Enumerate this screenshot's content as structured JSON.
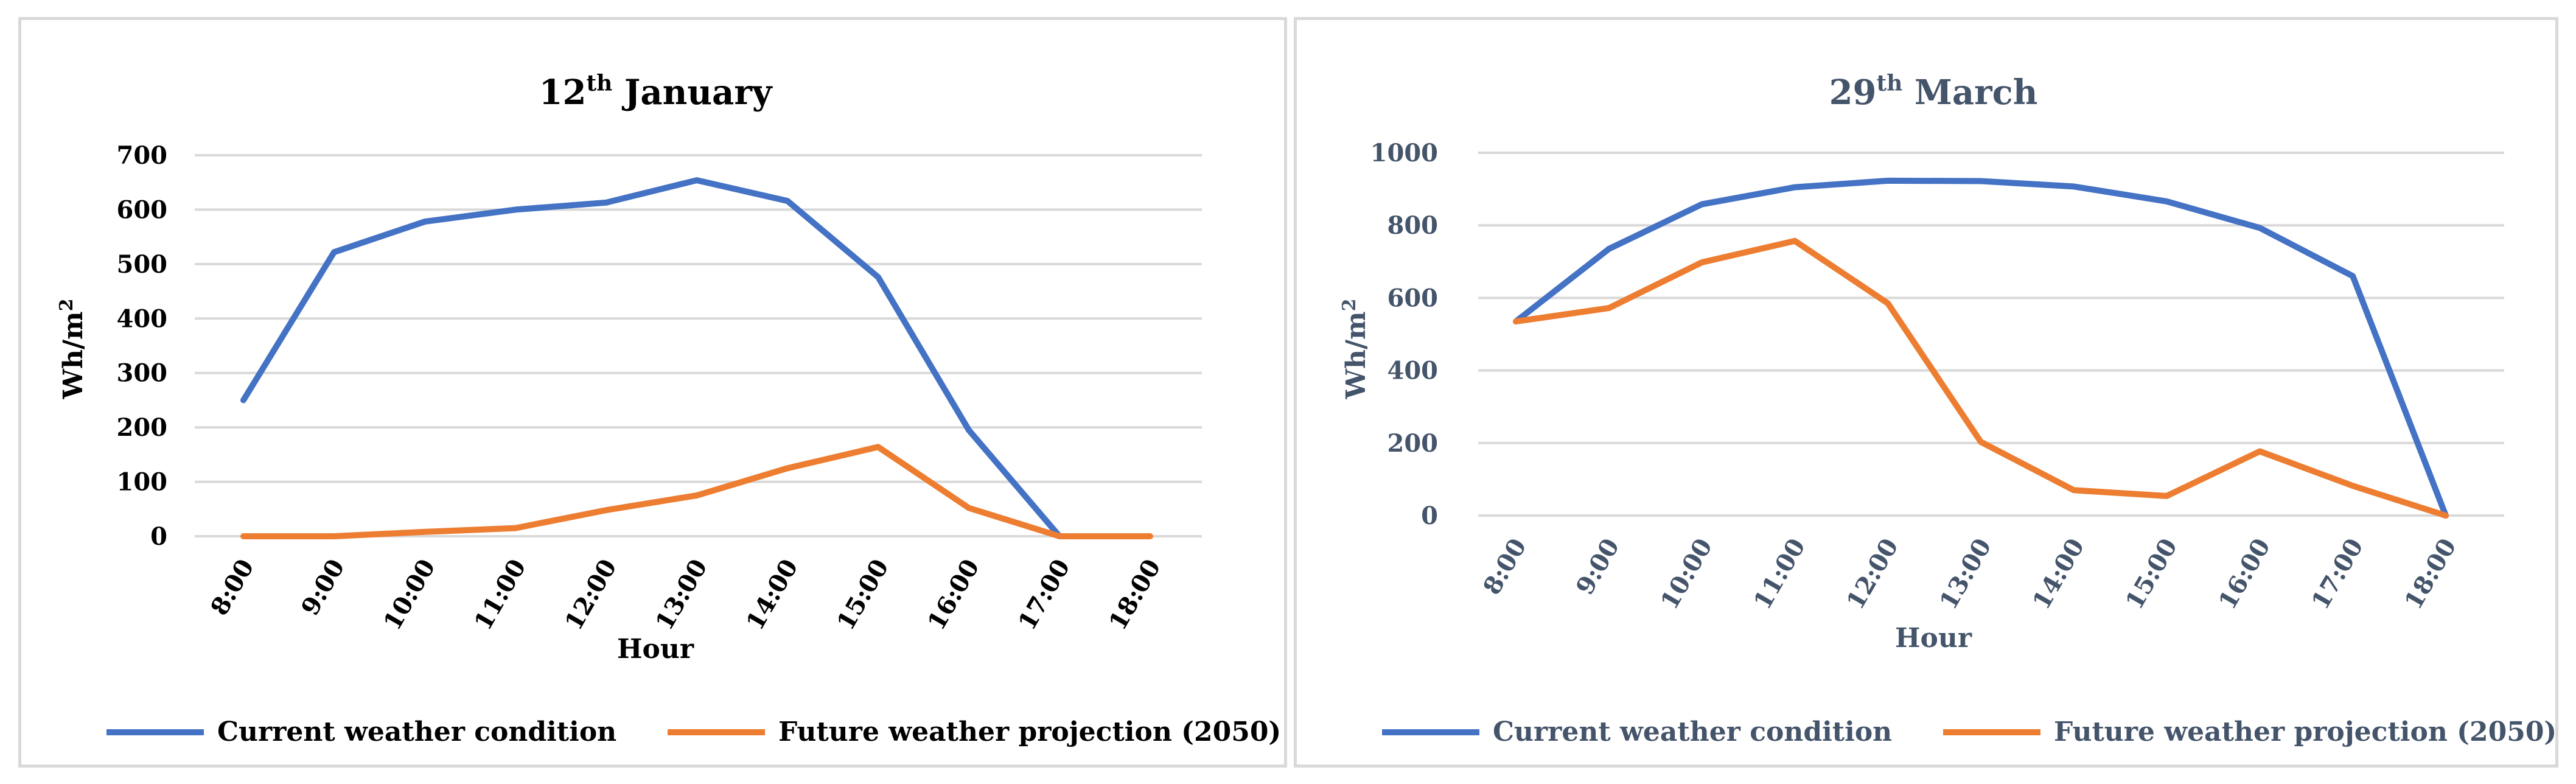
{
  "chart_data": [
    {
      "type": "line",
      "title": "12",
      "title_sup": "th",
      "title_rest": " January",
      "xlabel": "Hour",
      "ylabel": "Wh/m",
      "ylabel_sup": "2",
      "categories": [
        "8:00",
        "9:00",
        "10:00",
        "11:00",
        "12:00",
        "13:00",
        "14:00",
        "15:00",
        "16:00",
        "17:00",
        "18:00"
      ],
      "ylim": [
        0,
        700
      ],
      "yticks": [
        0,
        100,
        200,
        300,
        400,
        500,
        600,
        700
      ],
      "text_color": "#000000",
      "series": [
        {
          "name": "Current weather condition",
          "color": "#4472c4",
          "values": [
            250,
            522,
            578,
            600,
            613,
            654,
            616,
            476,
            195,
            0,
            null
          ]
        },
        {
          "name": "Future weather projection (2050)",
          "color": "#ed7d31",
          "values": [
            0,
            0,
            8,
            15,
            48,
            75,
            125,
            164,
            52,
            0,
            0
          ]
        }
      ],
      "legend": "bottom"
    },
    {
      "type": "line",
      "title": "29",
      "title_sup": "th",
      "title_rest": " March",
      "xlabel": "Hour",
      "ylabel": "Wh/m",
      "ylabel_sup": "2",
      "categories": [
        "8:00",
        "9:00",
        "10:00",
        "11:00",
        "12:00",
        "13:00",
        "14:00",
        "15:00",
        "16:00",
        "17:00",
        "18:00"
      ],
      "ylim": [
        0,
        1000
      ],
      "yticks": [
        0,
        200,
        400,
        600,
        800,
        1000
      ],
      "text_color": "#44546a",
      "series": [
        {
          "name": "Current weather condition",
          "color": "#4472c4",
          "values": [
            535,
            735,
            858,
            905,
            923,
            922,
            907,
            866,
            793,
            660,
            0
          ]
        },
        {
          "name": "Future weather projection (2050)",
          "color": "#ed7d31",
          "values": [
            535,
            572,
            698,
            757,
            585,
            203,
            70,
            54,
            177,
            82,
            0
          ]
        }
      ],
      "legend": "bottom"
    }
  ]
}
